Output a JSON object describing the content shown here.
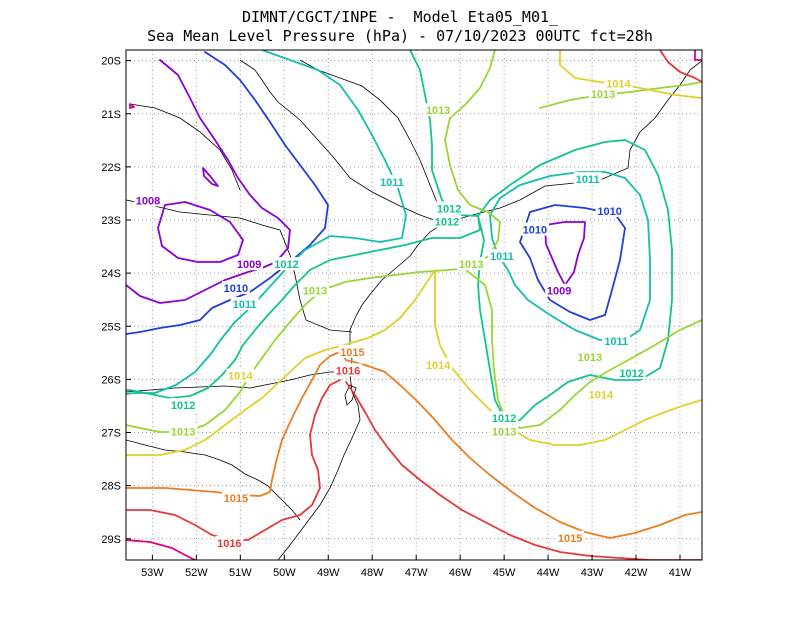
{
  "title": {
    "line1": "DIMNT/CGCT/INPE -  Model Eta05_M01_",
    "line2": "Sea Mean Level Pressure (hPa) - 07/10/2023 00UTC fct=28h"
  },
  "axes": {
    "lon_ticks": [
      "53W",
      "52W",
      "51W",
      "50W",
      "49W",
      "48W",
      "47W",
      "46W",
      "45W",
      "44W",
      "43W",
      "42W",
      "41W"
    ],
    "lat_ticks": [
      "20S",
      "21S",
      "22S",
      "23S",
      "24S",
      "25S",
      "26S",
      "27S",
      "28S",
      "29S"
    ],
    "lon_range": [
      -53.6,
      -40.5
    ],
    "lat_range": [
      -29.4,
      -19.8
    ],
    "grid": "dotted"
  },
  "colors": {
    "1008": "#8b00d6",
    "1009": "#8b00d6",
    "1010": "#1f3fd9",
    "1011": "#12bfb0",
    "1012": "#10c58f",
    "1013": "#9bd535",
    "1014": "#e0d02a",
    "1015": "#ec7d22",
    "1016": "#e8383a",
    "1017": "#e0008a"
  },
  "contour_labels": [
    {
      "text": "1008",
      "lon": -53.1,
      "lat": -22.65
    },
    {
      "text": "1009",
      "lon": -50.8,
      "lat": -23.85
    },
    {
      "text": "1010",
      "lon": -51.1,
      "lat": -24.3
    },
    {
      "text": "1011",
      "lon": -50.9,
      "lat": -24.6
    },
    {
      "text": "1012",
      "lon": -49.95,
      "lat": -23.85
    },
    {
      "text": "1013",
      "lon": -49.3,
      "lat": -24.35
    },
    {
      "text": "1014",
      "lon": -51.0,
      "lat": -25.95
    },
    {
      "text": "1015",
      "lon": -48.45,
      "lat": -25.5
    },
    {
      "text": "1016",
      "lon": -48.55,
      "lat": -25.85
    },
    {
      "text": "1012",
      "lon": -52.3,
      "lat": -26.5
    },
    {
      "text": "1013",
      "lon": -52.3,
      "lat": -27.0
    },
    {
      "text": "1015",
      "lon": -51.1,
      "lat": -28.25
    },
    {
      "text": "1016",
      "lon": -51.25,
      "lat": -29.1
    },
    {
      "text": "1011",
      "lon": -47.55,
      "lat": -22.3
    },
    {
      "text": "1013",
      "lon": -46.5,
      "lat": -20.95
    },
    {
      "text": "1012",
      "lon": -46.25,
      "lat": -22.8
    },
    {
      "text": "1012",
      "lon": -46.3,
      "lat": -23.05
    },
    {
      "text": "1013",
      "lon": -45.75,
      "lat": -23.85
    },
    {
      "text": "1011",
      "lon": -45.05,
      "lat": -23.7
    },
    {
      "text": "1014",
      "lon": -46.5,
      "lat": -25.75
    },
    {
      "text": "1012",
      "lon": -45.0,
      "lat": -26.75
    },
    {
      "text": "1013",
      "lon": -45.0,
      "lat": -27.0
    },
    {
      "text": "1010",
      "lon": -44.3,
      "lat": -23.2
    },
    {
      "text": "1009",
      "lon": -43.75,
      "lat": -24.35
    },
    {
      "text": "1010",
      "lon": -42.6,
      "lat": -22.85
    },
    {
      "text": "1011",
      "lon": -43.1,
      "lat": -22.25
    },
    {
      "text": "1011",
      "lon": -42.45,
      "lat": -25.3
    },
    {
      "text": "1012",
      "lon": -42.1,
      "lat": -25.9
    },
    {
      "text": "1013",
      "lon": -43.05,
      "lat": -25.6
    },
    {
      "text": "1014",
      "lon": -42.8,
      "lat": -26.3
    },
    {
      "text": "1015",
      "lon": -43.5,
      "lat": -29.0
    },
    {
      "text": "1013",
      "lon": -42.75,
      "lat": -20.65
    },
    {
      "text": "1014",
      "lon": -42.4,
      "lat": -20.45
    }
  ]
}
